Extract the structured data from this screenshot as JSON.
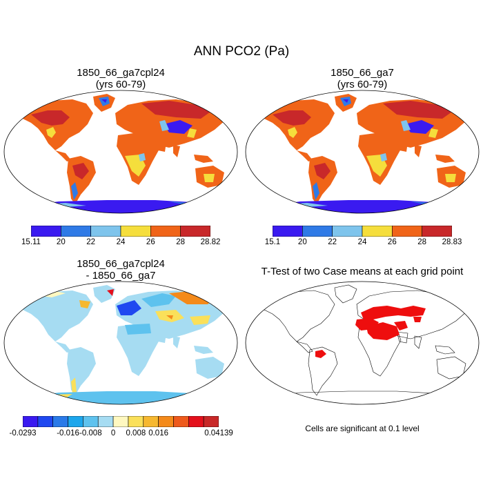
{
  "title": "ANN PCO2 (Pa)",
  "panels": {
    "top_left": {
      "title_line1": "1850_66_ga7cpl24",
      "title_line2": "(yrs 60-79)"
    },
    "top_right": {
      "title_line1": "1850_66_ga7",
      "title_line2": "(yrs 60-79)"
    },
    "bottom_left": {
      "title_line1": "1850_66_ga7cpl24",
      "title_line2": "- 1850_66_ga7"
    },
    "bottom_right": {
      "title": "T-Test of two Case means at each grid point",
      "footnote": "Cells are significant at 0.1 level"
    }
  },
  "colorbars": {
    "top_left": {
      "colors": [
        "#3a1af0",
        "#2f7ae6",
        "#7ec4ec",
        "#f5de3c",
        "#f06418",
        "#c8282a"
      ],
      "labels": [
        "15.11",
        "20",
        "22",
        "24",
        "26",
        "28",
        "28.82"
      ]
    },
    "top_right": {
      "colors": [
        "#3a1af0",
        "#2f7ae6",
        "#7ec4ec",
        "#f5de3c",
        "#f06418",
        "#c8282a"
      ],
      "labels": [
        "15.1",
        "20",
        "22",
        "24",
        "26",
        "28",
        "28.83"
      ]
    },
    "bottom_left": {
      "colors": [
        "#3a1af0",
        "#1f48f0",
        "#2a7ae8",
        "#1ca6ec",
        "#5ec2ee",
        "#a6dcf2",
        "#fff8c0",
        "#fae05a",
        "#f6b830",
        "#f48a1a",
        "#ee5a1c",
        "#e4101c",
        "#c82828"
      ],
      "labels": [
        {
          "text": "-0.0293",
          "pos": 0
        },
        {
          "text": "-0.016",
          "pos": 3
        },
        {
          "text": "-0.008",
          "pos": 4.5
        },
        {
          "text": "0",
          "pos": 6
        },
        {
          "text": "0.008",
          "pos": 7.5
        },
        {
          "text": "0.016",
          "pos": 9
        },
        {
          "text": "0.04139",
          "pos": 13
        }
      ]
    }
  },
  "map_colors": {
    "land_high": "#f06418",
    "land_mid": "#f5de3c",
    "land_low": "#2f7ae6",
    "land_lowest": "#3a1af0",
    "land_top": "#c8282a",
    "land_light": "#7ec4ec",
    "diff_base": "#a6dcf2",
    "diff_pos": "#f48a1a",
    "diff_hot": "#e4101c",
    "diff_neg": "#1f48f0",
    "sig": "#ee0e0e"
  }
}
